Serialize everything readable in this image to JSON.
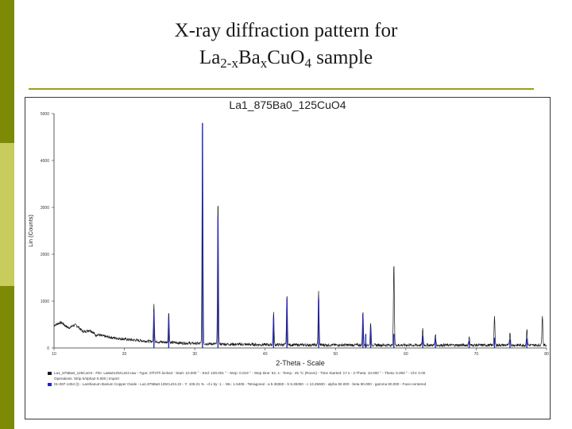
{
  "slide": {
    "title_line1": "X-ray diffraction pattern for",
    "title_prefix": "La",
    "title_sub1": "2-x",
    "title_mid": "Ba",
    "title_sub2": "x",
    "title_mid2": "CuO",
    "title_sub3": "4",
    "title_suffix": " sample",
    "accent_colors": [
      "#7d8a06",
      "#c7cc5c",
      "#9aa018"
    ]
  },
  "chart_data": {
    "type": "line",
    "title": "La1_875Ba0_125CuO4",
    "xlabel": "2-Theta - Scale",
    "ylabel": "Lin (Counts)",
    "xlim": [
      10,
      80
    ],
    "ylim": [
      0,
      5000
    ],
    "x_ticks": [
      "10",
      "20",
      "30",
      "40",
      "50",
      "60",
      "70",
      "80"
    ],
    "y_ticks": [
      "0",
      "1000",
      "2000",
      "3000",
      "4000",
      "5000"
    ],
    "series": [
      {
        "color": "#1a1a1a",
        "peaks": [
          {
            "x": 24.2,
            "y": 850
          },
          {
            "x": 26.3,
            "y": 700
          },
          {
            "x": 31.1,
            "y": 4850
          },
          {
            "x": 33.3,
            "y": 3150
          },
          {
            "x": 41.2,
            "y": 750
          },
          {
            "x": 43.1,
            "y": 1150
          },
          {
            "x": 47.6,
            "y": 1200
          },
          {
            "x": 53.9,
            "y": 800
          },
          {
            "x": 55.0,
            "y": 550
          },
          {
            "x": 58.3,
            "y": 1800
          },
          {
            "x": 62.4,
            "y": 400
          },
          {
            "x": 64.2,
            "y": 300
          },
          {
            "x": 69.0,
            "y": 250
          },
          {
            "x": 72.6,
            "y": 650
          },
          {
            "x": 74.8,
            "y": 350
          },
          {
            "x": 77.2,
            "y": 400
          },
          {
            "x": 79.4,
            "y": 700
          }
        ]
      },
      {
        "color": "#2222cc",
        "sticks": [
          {
            "x": 24.2,
            "y": 780
          },
          {
            "x": 26.3,
            "y": 640
          },
          {
            "x": 31.1,
            "y": 4800
          },
          {
            "x": 33.3,
            "y": 2800
          },
          {
            "x": 41.2,
            "y": 650
          },
          {
            "x": 43.1,
            "y": 1050
          },
          {
            "x": 47.6,
            "y": 1050
          },
          {
            "x": 53.9,
            "y": 700
          },
          {
            "x": 54.3,
            "y": 300
          },
          {
            "x": 55.0,
            "y": 420
          },
          {
            "x": 58.3,
            "y": 300
          },
          {
            "x": 62.4,
            "y": 260
          },
          {
            "x": 64.2,
            "y": 200
          },
          {
            "x": 69.0,
            "y": 150
          },
          {
            "x": 72.6,
            "y": 220
          },
          {
            "x": 74.8,
            "y": 180
          },
          {
            "x": 77.2,
            "y": 200
          }
        ]
      }
    ],
    "legend": [
      {
        "color": "#1a1a1a",
        "text": "La1_875Ba0_125CuO4 - File: La8a0125CuO4.raw - Type: 2Th/Th locked - Start: 10.000 ° - End: 100.001 ° - Step: 0.019 ° - Step time: 52. s - Temp.: 25 °C (Room) - Time Started: 17 s - 2-Theta: 10.000 ° - Theta: 5.000 ° - Chi: 0.00"
      },
      {
        "color": "#ffffff",
        "text": "Operations: Strip kAlpha2 0.500 | Import"
      },
      {
        "color": "#2222cc",
        "text": "01-087-1454 (I) - Lanthanum Barium Copper Oxide - La1.875Ba0.125CuO4.22 - Y: 106.21 % - d x by: 1. - WL: 1.5406 - Tetragonal - a 5.36360 - b 5.36360 - c 13.25600 - alpha 90.000 - beta 90.000 - gamma 90.000 - Face-centered"
      }
    ]
  }
}
